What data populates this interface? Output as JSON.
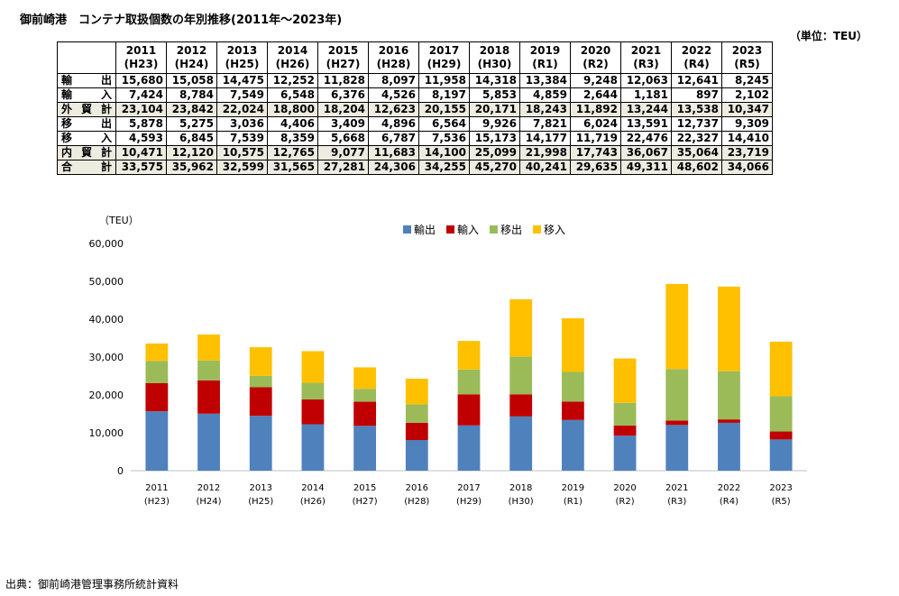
{
  "title": "御前崎港　コンテナ取扱個数の年別推移(2011年～2023年)",
  "unit_label": "（単位：TEU）",
  "source_note": "出典：御前崎港管理事務所統計資料",
  "table": {
    "columns": [
      {
        "year": "2011",
        "era": "(H23)"
      },
      {
        "year": "2012",
        "era": "(H24)"
      },
      {
        "year": "2013",
        "era": "(H25)"
      },
      {
        "year": "2014",
        "era": "(H26)"
      },
      {
        "year": "2015",
        "era": "(H27)"
      },
      {
        "year": "2016",
        "era": "(H28)"
      },
      {
        "year": "2017",
        "era": "(H29)"
      },
      {
        "year": "2018",
        "era": "(H30)"
      },
      {
        "year": "2019",
        "era": "(R1)"
      },
      {
        "year": "2020",
        "era": "(R2)"
      },
      {
        "year": "2021",
        "era": "(R3)"
      },
      {
        "year": "2022",
        "era": "(R4)"
      },
      {
        "year": "2023",
        "era": "(R5)"
      }
    ],
    "rows": [
      {
        "label": "輸出",
        "highlight": false,
        "cells": [
          "15,680",
          "15,058",
          "14,475",
          "12,252",
          "11,828",
          "8,097",
          "11,958",
          "14,318",
          "13,384",
          "9,248",
          "12,063",
          "12,641",
          "8,245"
        ]
      },
      {
        "label": "輸入",
        "highlight": false,
        "cells": [
          "7,424",
          "8,784",
          "7,549",
          "6,548",
          "6,376",
          "4,526",
          "8,197",
          "5,853",
          "4,859",
          "2,644",
          "1,181",
          "897",
          "2,102"
        ]
      },
      {
        "label": "外貿計",
        "highlight": true,
        "cells": [
          "23,104",
          "23,842",
          "22,024",
          "18,800",
          "18,204",
          "12,623",
          "20,155",
          "20,171",
          "18,243",
          "11,892",
          "13,244",
          "13,538",
          "10,347"
        ]
      },
      {
        "label": "移出",
        "highlight": false,
        "cells": [
          "5,878",
          "5,275",
          "3,036",
          "4,406",
          "3,409",
          "4,896",
          "6,564",
          "9,926",
          "7,821",
          "6,024",
          "13,591",
          "12,737",
          "9,309"
        ]
      },
      {
        "label": "移入",
        "highlight": false,
        "cells": [
          "4,593",
          "6,845",
          "7,539",
          "8,359",
          "5,668",
          "6,787",
          "7,536",
          "15,173",
          "14,177",
          "11,719",
          "22,476",
          "22,327",
          "14,410"
        ]
      },
      {
        "label": "内貿計",
        "highlight": true,
        "cells": [
          "10,471",
          "12,120",
          "10,575",
          "12,765",
          "9,077",
          "11,683",
          "14,100",
          "25,099",
          "21,998",
          "17,743",
          "36,067",
          "35,064",
          "23,719"
        ]
      },
      {
        "label": "合計",
        "highlight": true,
        "cells": [
          "33,575",
          "35,962",
          "32,599",
          "31,565",
          "27,281",
          "24,306",
          "34,255",
          "45,270",
          "40,241",
          "29,635",
          "49,311",
          "48,602",
          "34,066"
        ]
      }
    ]
  },
  "chart_data": {
    "type": "bar",
    "stacked": true,
    "ylabel": "（TEU）",
    "ylim": [
      0,
      60000
    ],
    "yticks": [
      0,
      10000,
      20000,
      30000,
      40000,
      50000,
      60000
    ],
    "ytick_labels": [
      "0",
      "10,000",
      "20,000",
      "30,000",
      "40,000",
      "50,000",
      "60,000"
    ],
    "grid": false,
    "legend_position": "top",
    "categories": [
      "2011",
      "2012",
      "2013",
      "2014",
      "2015",
      "2016",
      "2017",
      "2018",
      "2019",
      "2020",
      "2021",
      "2022",
      "2023"
    ],
    "category_sublabels": [
      "(H23)",
      "(H24)",
      "(H25)",
      "(H26)",
      "(H27)",
      "(H28)",
      "(H29)",
      "(H30)",
      "(R1)",
      "(R2)",
      "(R3)",
      "(R4)",
      "(R5)"
    ],
    "series": [
      {
        "name": "輸出",
        "color": "#4f81bd",
        "values": [
          15680,
          15058,
          14475,
          12252,
          11828,
          8097,
          11958,
          14318,
          13384,
          9248,
          12063,
          12641,
          8245
        ]
      },
      {
        "name": "輸入",
        "color": "#c00000",
        "values": [
          7424,
          8784,
          7549,
          6548,
          6376,
          4526,
          8197,
          5853,
          4859,
          2644,
          1181,
          897,
          2102
        ]
      },
      {
        "name": "移出",
        "color": "#9bbb59",
        "values": [
          5878,
          5275,
          3036,
          4406,
          3409,
          4896,
          6564,
          9926,
          7821,
          6024,
          13591,
          12737,
          9309
        ]
      },
      {
        "name": "移入",
        "color": "#ffc000",
        "values": [
          4593,
          6845,
          7539,
          8359,
          5668,
          6787,
          7536,
          15173,
          14177,
          11719,
          22476,
          22327,
          14410
        ]
      }
    ]
  }
}
